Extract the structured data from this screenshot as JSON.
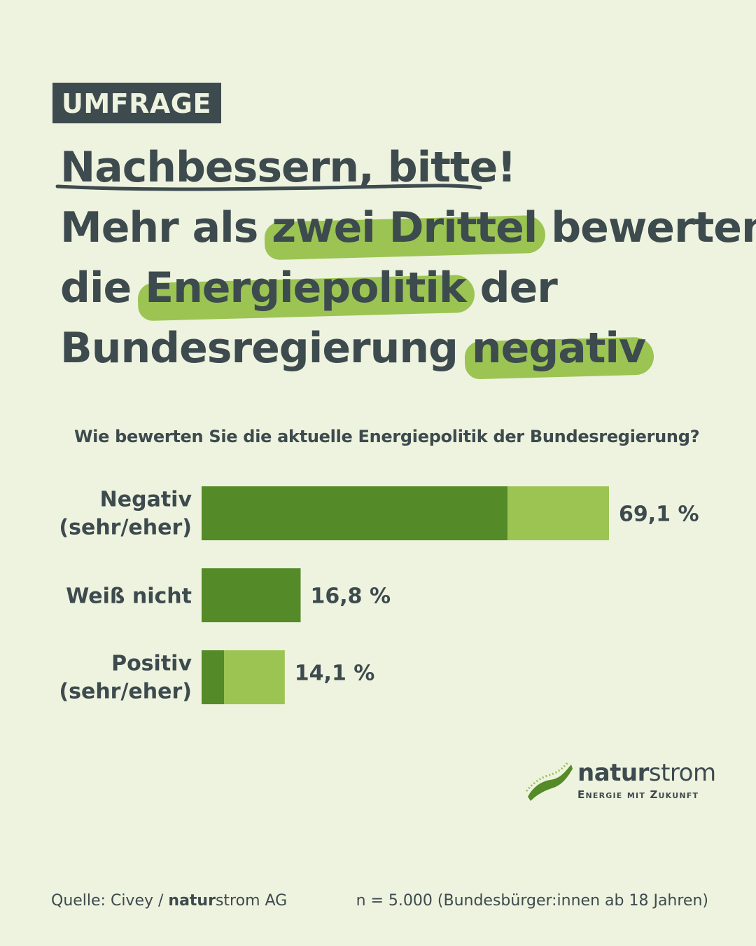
{
  "badge": "UMFRAGE",
  "headline": {
    "title": "Nachbessern, bitte!",
    "line2_a": "Mehr als ",
    "line2_hl": "zwei Drittel",
    "line2_b": " bewerten",
    "line3_a": "die ",
    "line3_hl": "Energiepolitik",
    "line3_b": " der",
    "line4_a": "Bundesregierung ",
    "line4_hl": "negativ"
  },
  "colors": {
    "background": "#eef3df",
    "text": "#3d4a4e",
    "dark_green": "#548a27",
    "light_green": "#9bc453"
  },
  "chart_data": {
    "type": "bar",
    "orientation": "horizontal",
    "stacked": true,
    "title": "Wie bewerten Sie die aktuelle Energiepolitik der Bundesregierung?",
    "categories": [
      [
        "Negativ",
        "(sehr/eher)"
      ],
      [
        "Weiß nicht"
      ],
      [
        "Positiv",
        "(sehr/eher)"
      ]
    ],
    "series": [
      {
        "name": "sehr",
        "color": "#548a27",
        "values": [
          51.9,
          16.8,
          3.8
        ]
      },
      {
        "name": "eher",
        "color": "#9bc453",
        "values": [
          17.2,
          0,
          10.3
        ]
      }
    ],
    "totals": [
      69.1,
      16.8,
      14.1
    ],
    "value_labels": [
      "69,1 %",
      "16,8 %",
      "14,1 %"
    ],
    "xlim": [
      0,
      100
    ]
  },
  "logo": {
    "brand_bold": "natur",
    "brand_regular": "strom",
    "tagline": "Energie mit Zukunft"
  },
  "footer": {
    "source_prefix": "Quelle: Civey / ",
    "source_bold": "natur",
    "source_regular": "strom AG",
    "sample": "n = 5.000 (Bundesbürger:innen ab 18 Jahren)"
  }
}
